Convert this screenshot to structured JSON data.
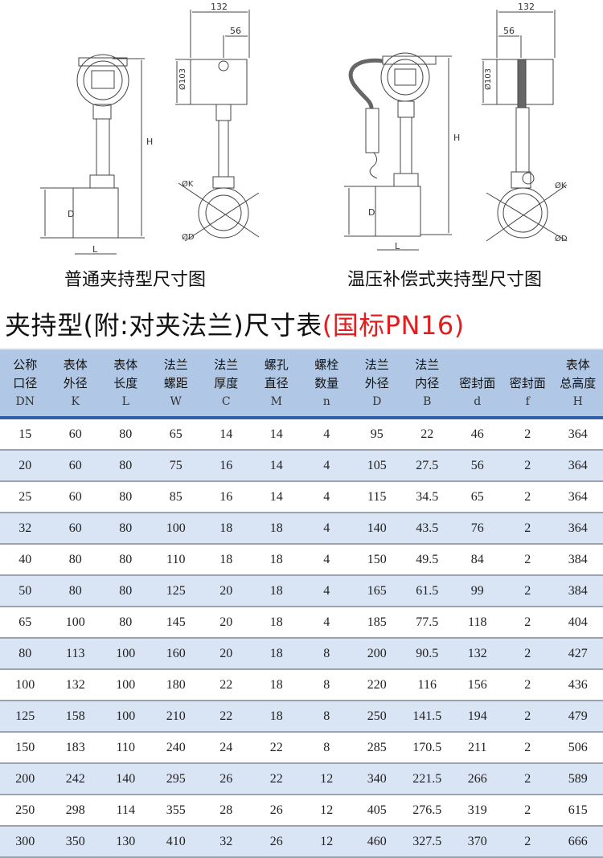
{
  "drawings": [
    {
      "caption": "普通夹持型尺寸图",
      "dim_width": "132",
      "dim_offset": "56",
      "dim_head": "Ø103",
      "dim_height": "H",
      "dim_pipe": "D",
      "dim_length": "L",
      "dim_k": "ØK",
      "dim_d": "ØD"
    },
    {
      "caption": "温压补偿式夹持型尺寸图",
      "dim_width": "132",
      "dim_offset": "56",
      "dim_head": "Ø103",
      "dim_height": "H",
      "dim_pipe": "D",
      "dim_length": "L",
      "dim_k": "ØK",
      "dim_d": "ØD"
    }
  ],
  "title": {
    "main": "夹持型(附:对夹法兰)尺寸表",
    "standard": "(国标PN16)"
  },
  "table": {
    "columns": [
      {
        "line1": "公称",
        "line2": "口径",
        "symbol": "DN"
      },
      {
        "line1": "表体",
        "line2": "外径",
        "symbol": "K"
      },
      {
        "line1": "表体",
        "line2": "长度",
        "symbol": "L"
      },
      {
        "line1": "法兰",
        "line2": "螺距",
        "symbol": "W"
      },
      {
        "line1": "法兰",
        "line2": "厚度",
        "symbol": "C"
      },
      {
        "line1": "螺孔",
        "line2": "直径",
        "symbol": "M"
      },
      {
        "line1": "螺栓",
        "line2": "数量",
        "symbol": "n"
      },
      {
        "line1": "法兰",
        "line2": "外径",
        "symbol": "D"
      },
      {
        "line1": "法兰",
        "line2": "内径",
        "symbol": "B"
      },
      {
        "line1": "",
        "line2": "密封面",
        "symbol": "d"
      },
      {
        "line1": "",
        "line2": "密封面",
        "symbol": "f"
      },
      {
        "line1": "表体",
        "line2": "总高度",
        "symbol": "H"
      }
    ],
    "rows": [
      [
        "15",
        "60",
        "80",
        "65",
        "14",
        "14",
        "4",
        "95",
        "22",
        "46",
        "2",
        "364"
      ],
      [
        "20",
        "60",
        "80",
        "75",
        "16",
        "14",
        "4",
        "105",
        "27.5",
        "56",
        "2",
        "364"
      ],
      [
        "25",
        "60",
        "80",
        "85",
        "16",
        "14",
        "4",
        "115",
        "34.5",
        "65",
        "2",
        "364"
      ],
      [
        "32",
        "60",
        "80",
        "100",
        "18",
        "18",
        "4",
        "140",
        "43.5",
        "76",
        "2",
        "364"
      ],
      [
        "40",
        "80",
        "80",
        "110",
        "18",
        "18",
        "4",
        "150",
        "49.5",
        "84",
        "2",
        "384"
      ],
      [
        "50",
        "80",
        "80",
        "125",
        "20",
        "18",
        "4",
        "165",
        "61.5",
        "99",
        "2",
        "384"
      ],
      [
        "65",
        "100",
        "80",
        "145",
        "20",
        "18",
        "4",
        "185",
        "77.5",
        "118",
        "2",
        "404"
      ],
      [
        "80",
        "113",
        "100",
        "160",
        "20",
        "18",
        "8",
        "200",
        "90.5",
        "132",
        "2",
        "427"
      ],
      [
        "100",
        "132",
        "100",
        "180",
        "22",
        "18",
        "8",
        "220",
        "116",
        "156",
        "2",
        "436"
      ],
      [
        "125",
        "158",
        "100",
        "210",
        "22",
        "18",
        "8",
        "250",
        "141.5",
        "194",
        "2",
        "479"
      ],
      [
        "150",
        "183",
        "110",
        "240",
        "24",
        "22",
        "8",
        "285",
        "170.5",
        "211",
        "2",
        "506"
      ],
      [
        "200",
        "242",
        "140",
        "295",
        "26",
        "22",
        "12",
        "340",
        "221.5",
        "266",
        "2",
        "589"
      ],
      [
        "250",
        "298",
        "114",
        "355",
        "28",
        "26",
        "12",
        "405",
        "276.5",
        "319",
        "2",
        "615"
      ],
      [
        "300",
        "350",
        "130",
        "410",
        "32",
        "26",
        "12",
        "460",
        "327.5",
        "370",
        "2",
        "666"
      ]
    ]
  },
  "colors": {
    "header_bg": "#b0c8e6",
    "header_border": "#2f5fa8",
    "row_alt": "#d9e4f4",
    "accent_red": "#e02020"
  }
}
